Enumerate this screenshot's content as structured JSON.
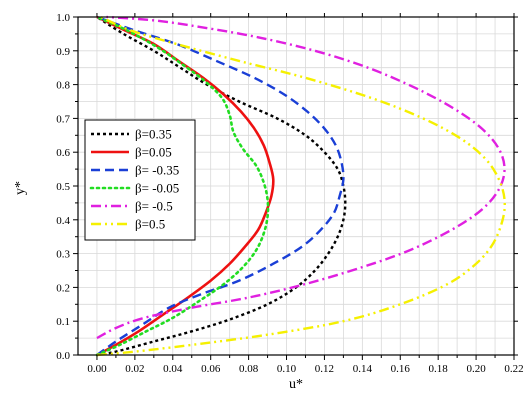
{
  "chart_data": {
    "type": "line",
    "xlabel": "u*",
    "ylabel": "y*",
    "xlim": [
      -0.01,
      0.22
    ],
    "ylim": [
      0.0,
      1.0
    ],
    "x_ticks": [
      "0.00",
      "0.02",
      "0.04",
      "0.06",
      "0.08",
      "0.10",
      "0.12",
      "0.14",
      "0.16",
      "0.18",
      "0.20",
      "0.22"
    ],
    "y_ticks": [
      "0.0",
      "0.1",
      "0.2",
      "0.3",
      "0.4",
      "0.5",
      "0.6",
      "0.7",
      "0.8",
      "0.9",
      "1.0"
    ],
    "grid": true,
    "legend_position": "left",
    "series": [
      {
        "name": "β=0.35",
        "color": "#000000",
        "dash": "3,3",
        "points": [
          [
            0.0,
            0.0
          ],
          [
            0.01,
            0.01
          ],
          [
            0.03,
            0.04
          ],
          [
            0.05,
            0.07
          ],
          [
            0.07,
            0.105
          ],
          [
            0.09,
            0.15
          ],
          [
            0.105,
            0.2
          ],
          [
            0.115,
            0.25
          ],
          [
            0.122,
            0.3
          ],
          [
            0.127,
            0.35
          ],
          [
            0.13,
            0.4
          ],
          [
            0.131,
            0.45
          ],
          [
            0.13,
            0.5
          ],
          [
            0.127,
            0.55
          ],
          [
            0.12,
            0.6
          ],
          [
            0.11,
            0.65
          ],
          [
            0.095,
            0.7
          ],
          [
            0.075,
            0.75
          ],
          [
            0.058,
            0.8
          ],
          [
            0.044,
            0.85
          ],
          [
            0.03,
            0.9
          ],
          [
            0.014,
            0.95
          ],
          [
            0.0,
            1.0
          ]
        ]
      },
      {
        "name": "β=0.05",
        "color": "#ee1111",
        "dash": "",
        "points": [
          [
            0.0,
            0.0
          ],
          [
            0.01,
            0.03
          ],
          [
            0.022,
            0.07
          ],
          [
            0.035,
            0.12
          ],
          [
            0.048,
            0.17
          ],
          [
            0.06,
            0.22
          ],
          [
            0.07,
            0.27
          ],
          [
            0.078,
            0.32
          ],
          [
            0.085,
            0.37
          ],
          [
            0.089,
            0.42
          ],
          [
            0.092,
            0.47
          ],
          [
            0.093,
            0.52
          ],
          [
            0.091,
            0.57
          ],
          [
            0.088,
            0.62
          ],
          [
            0.083,
            0.67
          ],
          [
            0.076,
            0.72
          ],
          [
            0.067,
            0.77
          ],
          [
            0.056,
            0.82
          ],
          [
            0.043,
            0.87
          ],
          [
            0.03,
            0.92
          ],
          [
            0.015,
            0.96
          ],
          [
            0.0,
            1.0
          ]
        ]
      },
      {
        "name": "β= -0.35",
        "color": "#1a3fd6",
        "dash": "9,5",
        "points": [
          [
            0.0,
            0.0
          ],
          [
            0.01,
            0.04
          ],
          [
            0.024,
            0.09
          ],
          [
            0.038,
            0.14
          ],
          [
            0.055,
            0.18
          ],
          [
            0.075,
            0.22
          ],
          [
            0.093,
            0.27
          ],
          [
            0.108,
            0.32
          ],
          [
            0.118,
            0.37
          ],
          [
            0.125,
            0.42
          ],
          [
            0.128,
            0.47
          ],
          [
            0.13,
            0.52
          ],
          [
            0.129,
            0.57
          ],
          [
            0.126,
            0.62
          ],
          [
            0.12,
            0.67
          ],
          [
            0.111,
            0.72
          ],
          [
            0.099,
            0.77
          ],
          [
            0.083,
            0.82
          ],
          [
            0.063,
            0.87
          ],
          [
            0.042,
            0.92
          ],
          [
            0.02,
            0.96
          ],
          [
            0.0,
            1.0
          ]
        ]
      },
      {
        "name": "β= -0.05",
        "color": "#22dd22",
        "dash": "2,4",
        "points": [
          [
            0.0,
            0.0
          ],
          [
            0.012,
            0.03
          ],
          [
            0.026,
            0.07
          ],
          [
            0.04,
            0.11
          ],
          [
            0.054,
            0.16
          ],
          [
            0.067,
            0.21
          ],
          [
            0.077,
            0.26
          ],
          [
            0.084,
            0.31
          ],
          [
            0.088,
            0.36
          ],
          [
            0.09,
            0.41
          ],
          [
            0.09,
            0.46
          ],
          [
            0.088,
            0.51
          ],
          [
            0.084,
            0.56
          ],
          [
            0.077,
            0.61
          ],
          [
            0.072,
            0.66
          ],
          [
            0.07,
            0.71
          ],
          [
            0.066,
            0.76
          ],
          [
            0.057,
            0.81
          ],
          [
            0.045,
            0.86
          ],
          [
            0.032,
            0.91
          ],
          [
            0.016,
            0.96
          ],
          [
            0.0,
            1.0
          ]
        ]
      },
      {
        "name": "β= -0.5",
        "color": "#e020e0",
        "dash": "10,4,2,4",
        "points": [
          [
            0.0,
            0.05
          ],
          [
            0.01,
            0.08
          ],
          [
            0.025,
            0.11
          ],
          [
            0.05,
            0.14
          ],
          [
            0.08,
            0.17
          ],
          [
            0.11,
            0.21
          ],
          [
            0.14,
            0.26
          ],
          [
            0.165,
            0.31
          ],
          [
            0.187,
            0.37
          ],
          [
            0.203,
            0.43
          ],
          [
            0.212,
            0.49
          ],
          [
            0.215,
            0.55
          ],
          [
            0.212,
            0.61
          ],
          [
            0.203,
            0.67
          ],
          [
            0.188,
            0.73
          ],
          [
            0.168,
            0.79
          ],
          [
            0.143,
            0.85
          ],
          [
            0.115,
            0.9
          ],
          [
            0.085,
            0.94
          ],
          [
            0.055,
            0.97
          ],
          [
            0.03,
            0.99
          ],
          [
            0.005,
            1.0
          ]
        ]
      },
      {
        "name": "β=0.5",
        "color": "#f5f000",
        "dash": "10,4,2,4,2,4",
        "points": [
          [
            0.0,
            0.0
          ],
          [
            0.02,
            0.01
          ],
          [
            0.05,
            0.03
          ],
          [
            0.09,
            0.06
          ],
          [
            0.13,
            0.1
          ],
          [
            0.16,
            0.15
          ],
          [
            0.185,
            0.21
          ],
          [
            0.2,
            0.27
          ],
          [
            0.209,
            0.33
          ],
          [
            0.214,
            0.4
          ],
          [
            0.215,
            0.46
          ],
          [
            0.212,
            0.52
          ],
          [
            0.205,
            0.58
          ],
          [
            0.192,
            0.64
          ],
          [
            0.172,
            0.7
          ],
          [
            0.145,
            0.76
          ],
          [
            0.11,
            0.82
          ],
          [
            0.075,
            0.87
          ],
          [
            0.042,
            0.92
          ],
          [
            0.018,
            0.96
          ],
          [
            0.002,
            1.0
          ]
        ]
      }
    ]
  }
}
